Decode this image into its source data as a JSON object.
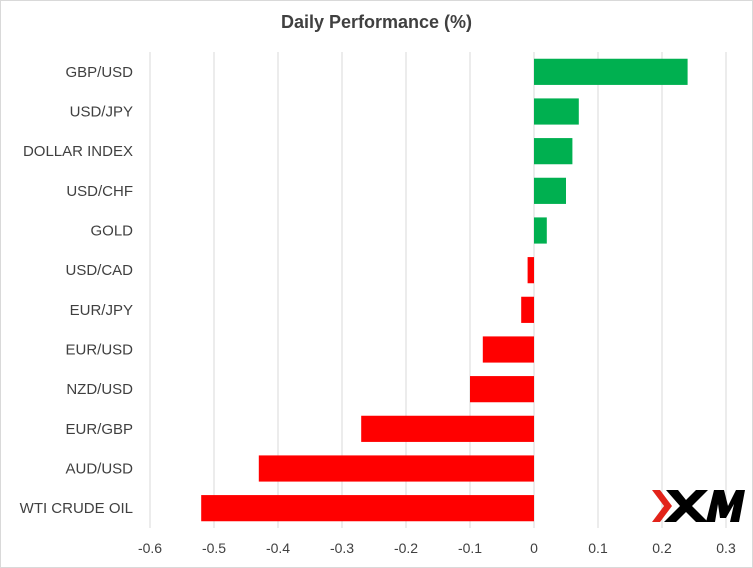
{
  "chart_data": {
    "type": "bar",
    "orientation": "horizontal",
    "title": "Daily Performance (%)",
    "categories": [
      "GBP/USD",
      "USD/JPY",
      "DOLLAR INDEX",
      "USD/CHF",
      "GOLD",
      "USD/CAD",
      "EUR/JPY",
      "EUR/USD",
      "NZD/USD",
      "EUR/GBP",
      "AUD/USD",
      "WTI CRUDE OIL"
    ],
    "values": [
      0.24,
      0.07,
      0.06,
      0.05,
      0.02,
      -0.01,
      -0.02,
      -0.08,
      -0.1,
      -0.27,
      -0.43,
      -0.52
    ],
    "xlim": [
      -0.6,
      0.3
    ],
    "xticks": [
      -0.6,
      -0.5,
      -0.4,
      -0.3,
      -0.2,
      -0.1,
      0,
      0.1,
      0.2,
      0.3
    ],
    "xtick_labels": [
      "-0.6",
      "-0.5",
      "-0.4",
      "-0.3",
      "-0.2",
      "-0.1",
      "0",
      "0.1",
      "0.2",
      "0.3"
    ],
    "grid": "vertical",
    "colors": {
      "positive": "#00b050",
      "negative": "#ff0000",
      "gridline": "#d9d9d9",
      "text": "#404040"
    }
  },
  "logo": {
    "text": "XM",
    "colors": {
      "mark": "#e2231a",
      "text": "#000000"
    }
  }
}
